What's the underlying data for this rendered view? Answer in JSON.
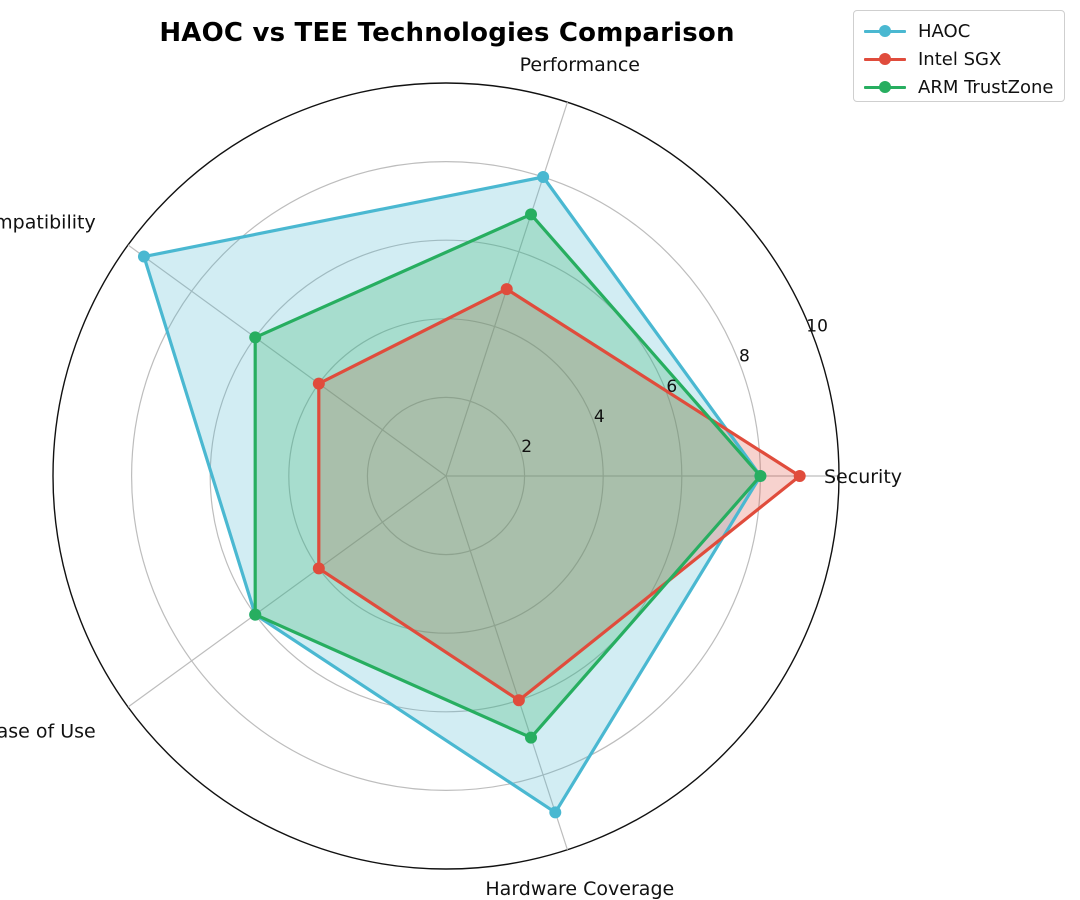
{
  "chart_data": {
    "type": "radar",
    "title": "HAOC vs TEE Technologies Comparison",
    "axes": [
      "Security",
      "Performance",
      "Eco-Compatibility",
      "Ease of Use",
      "Hardware Coverage"
    ],
    "rlim": [
      0,
      10
    ],
    "rticks": [
      "2",
      "4",
      "6",
      "8",
      "10"
    ],
    "grid": true,
    "legend_position": "top-right",
    "series": [
      {
        "name": "HAOC",
        "color": "#4ab8d1",
        "values": [
          8,
          8,
          9.5,
          6,
          9
        ]
      },
      {
        "name": "Intel SGX",
        "color": "#e04c3c",
        "values": [
          9,
          5,
          4,
          4,
          6
        ]
      },
      {
        "name": "ARM TrustZone",
        "color": "#27ae60",
        "values": [
          8,
          7,
          6,
          6,
          7
        ]
      }
    ]
  }
}
